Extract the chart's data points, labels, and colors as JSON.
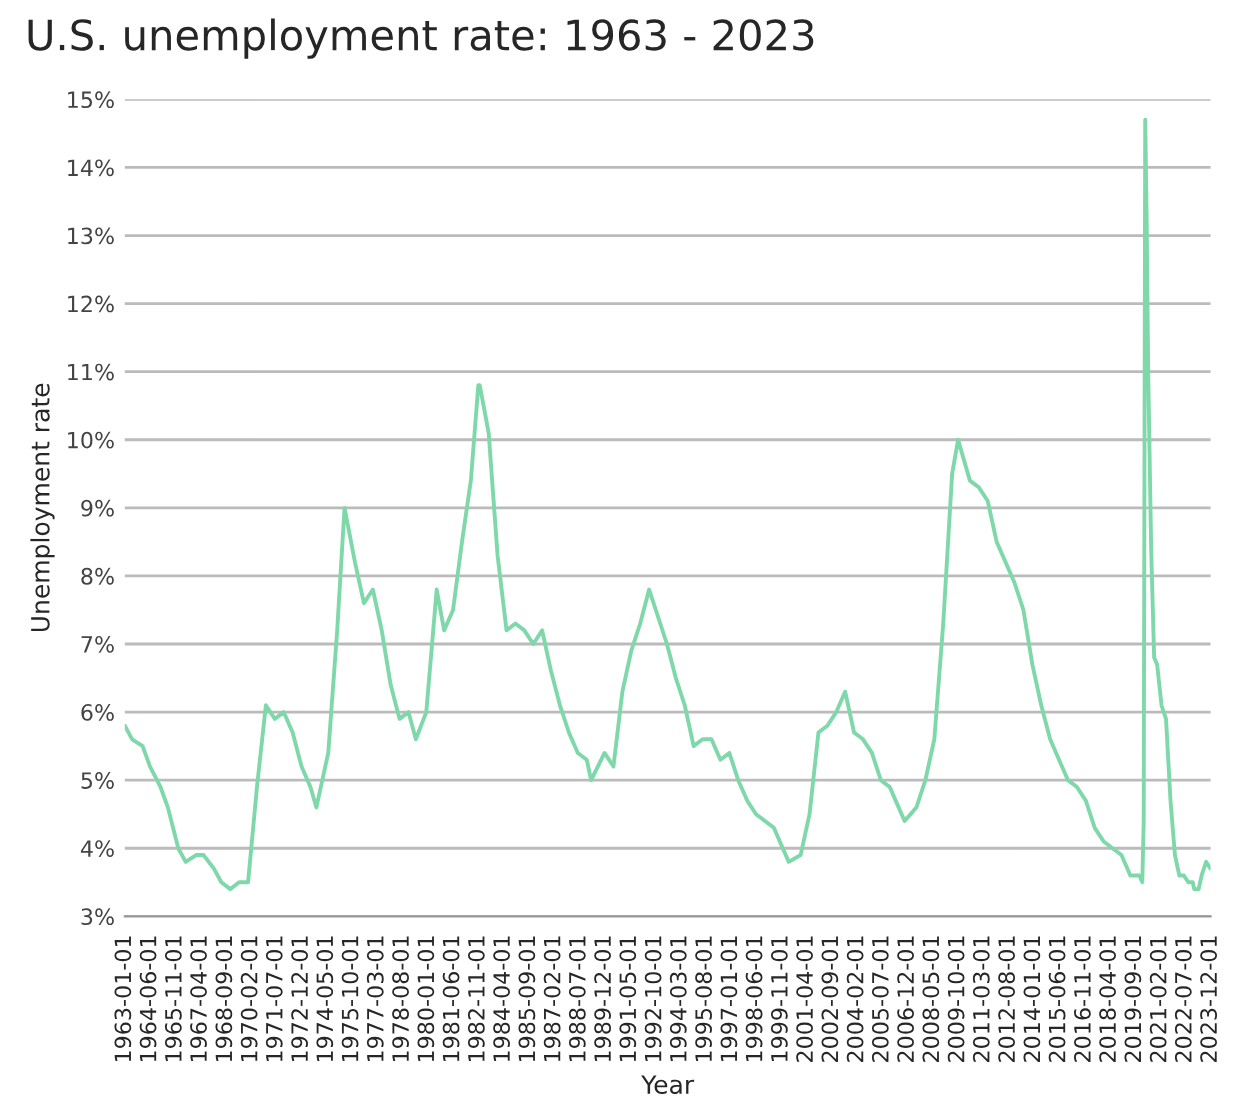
{
  "chart_data": {
    "type": "line",
    "title": "U.S. unemployment rate: 1963 - 2023",
    "xlabel": "Year",
    "ylabel": "Unemployment rate",
    "x": [
      "1963-01",
      "1963-06",
      "1964-01",
      "1964-06",
      "1965-01",
      "1965-06",
      "1966-01",
      "1966-06",
      "1967-01",
      "1967-06",
      "1968-01",
      "1968-06",
      "1968-12",
      "1969-06",
      "1969-12",
      "1970-06",
      "1970-12",
      "1971-06",
      "1971-12",
      "1972-06",
      "1972-12",
      "1973-06",
      "1973-10",
      "1974-06",
      "1974-12",
      "1975-05",
      "1975-12",
      "1976-06",
      "1976-12",
      "1977-06",
      "1977-12",
      "1978-06",
      "1978-12",
      "1979-05",
      "1979-12",
      "1980-07",
      "1980-12",
      "1981-06",
      "1981-12",
      "1982-06",
      "1982-11",
      "1982-12",
      "1983-06",
      "1983-12",
      "1984-06",
      "1984-12",
      "1985-06",
      "1985-12",
      "1986-06",
      "1986-12",
      "1987-06",
      "1987-12",
      "1988-06",
      "1988-12",
      "1989-03",
      "1989-12",
      "1990-06",
      "1990-12",
      "1991-06",
      "1991-12",
      "1992-06",
      "1992-12",
      "1993-06",
      "1993-12",
      "1994-06",
      "1994-12",
      "1995-06",
      "1995-12",
      "1996-06",
      "1996-12",
      "1997-06",
      "1997-12",
      "1998-06",
      "1998-12",
      "1999-06",
      "1999-12",
      "2000-04",
      "2000-12",
      "2001-06",
      "2001-12",
      "2002-06",
      "2002-12",
      "2003-06",
      "2003-12",
      "2004-06",
      "2004-12",
      "2005-06",
      "2005-12",
      "2006-06",
      "2006-10",
      "2007-06",
      "2007-12",
      "2008-06",
      "2008-12",
      "2009-06",
      "2009-10",
      "2010-06",
      "2010-12",
      "2011-06",
      "2011-12",
      "2012-06",
      "2012-12",
      "2013-06",
      "2013-12",
      "2014-06",
      "2014-12",
      "2015-06",
      "2015-12",
      "2016-06",
      "2016-12",
      "2017-06",
      "2017-12",
      "2018-06",
      "2018-12",
      "2019-06",
      "2019-12",
      "2020-02",
      "2020-03",
      "2020-04",
      "2020-05",
      "2020-06",
      "2020-08",
      "2020-10",
      "2020-12",
      "2021-03",
      "2021-06",
      "2021-09",
      "2021-12",
      "2022-03",
      "2022-06",
      "2022-09",
      "2022-12",
      "2023-01",
      "2023-04",
      "2023-06",
      "2023-09",
      "2023-12"
    ],
    "series": [
      {
        "color": "#7fd8aa",
        "values": [
          5.8,
          5.6,
          5.5,
          5.2,
          4.9,
          4.6,
          4.0,
          3.8,
          3.9,
          3.9,
          3.7,
          3.5,
          3.4,
          3.5,
          3.5,
          4.9,
          6.1,
          5.9,
          6.0,
          5.7,
          5.2,
          4.9,
          4.6,
          5.4,
          7.2,
          9.0,
          8.2,
          7.6,
          7.8,
          7.2,
          6.4,
          5.9,
          6.0,
          5.6,
          6.0,
          7.8,
          7.2,
          7.5,
          8.5,
          9.4,
          10.8,
          10.8,
          10.1,
          8.3,
          7.2,
          7.3,
          7.2,
          7.0,
          7.2,
          6.6,
          6.1,
          5.7,
          5.4,
          5.3,
          5.0,
          5.4,
          5.2,
          6.3,
          6.9,
          7.3,
          7.8,
          7.4,
          7.0,
          6.5,
          6.1,
          5.5,
          5.6,
          5.6,
          5.3,
          5.4,
          5.0,
          4.7,
          4.5,
          4.4,
          4.3,
          4.0,
          3.8,
          3.9,
          4.5,
          5.7,
          5.8,
          6.0,
          6.3,
          5.7,
          5.6,
          5.4,
          5.0,
          4.9,
          4.6,
          4.4,
          4.6,
          5.0,
          5.6,
          7.3,
          9.5,
          10.0,
          9.4,
          9.3,
          9.1,
          8.5,
          8.2,
          7.9,
          7.5,
          6.7,
          6.1,
          5.6,
          5.3,
          5.0,
          4.9,
          4.7,
          4.3,
          4.1,
          4.0,
          3.9,
          3.6,
          3.6,
          3.5,
          4.4,
          14.7,
          13.2,
          11.0,
          8.4,
          6.8,
          6.7,
          6.1,
          5.9,
          4.7,
          3.9,
          3.6,
          3.6,
          3.5,
          3.5,
          3.4,
          3.4,
          3.6,
          3.8,
          3.7
        ]
      }
    ],
    "xlim": [
      "1963-01",
      "2023-12"
    ],
    "xticks": [
      {
        "value": "1963-01",
        "label": "1963-01-01"
      },
      {
        "value": "1964-06",
        "label": "1964-06-01"
      },
      {
        "value": "1965-11",
        "label": "1965-11-01"
      },
      {
        "value": "1967-04",
        "label": "1967-04-01"
      },
      {
        "value": "1968-09",
        "label": "1968-09-01"
      },
      {
        "value": "1970-02",
        "label": "1970-02-01"
      },
      {
        "value": "1971-07",
        "label": "1971-07-01"
      },
      {
        "value": "1972-12",
        "label": "1972-12-01"
      },
      {
        "value": "1974-05",
        "label": "1974-05-01"
      },
      {
        "value": "1975-10",
        "label": "1975-10-01"
      },
      {
        "value": "1977-03",
        "label": "1977-03-01"
      },
      {
        "value": "1978-08",
        "label": "1978-08-01"
      },
      {
        "value": "1980-01",
        "label": "1980-01-01"
      },
      {
        "value": "1981-06",
        "label": "1981-06-01"
      },
      {
        "value": "1982-11",
        "label": "1982-11-01"
      },
      {
        "value": "1984-04",
        "label": "1984-04-01"
      },
      {
        "value": "1985-09",
        "label": "1985-09-01"
      },
      {
        "value": "1987-02",
        "label": "1987-02-01"
      },
      {
        "value": "1988-07",
        "label": "1988-07-01"
      },
      {
        "value": "1989-12",
        "label": "1989-12-01"
      },
      {
        "value": "1991-05",
        "label": "1991-05-01"
      },
      {
        "value": "1992-10",
        "label": "1992-10-01"
      },
      {
        "value": "1994-03",
        "label": "1994-03-01"
      },
      {
        "value": "1995-08",
        "label": "1995-08-01"
      },
      {
        "value": "1997-01",
        "label": "1997-01-01"
      },
      {
        "value": "1998-06",
        "label": "1998-06-01"
      },
      {
        "value": "1999-11",
        "label": "1999-11-01"
      },
      {
        "value": "2001-04",
        "label": "2001-04-01"
      },
      {
        "value": "2002-09",
        "label": "2002-09-01"
      },
      {
        "value": "2004-02",
        "label": "2004-02-01"
      },
      {
        "value": "2005-07",
        "label": "2005-07-01"
      },
      {
        "value": "2006-12",
        "label": "2006-12-01"
      },
      {
        "value": "2008-05",
        "label": "2008-05-01"
      },
      {
        "value": "2009-10",
        "label": "2009-10-01"
      },
      {
        "value": "2011-03",
        "label": "2011-03-01"
      },
      {
        "value": "2012-08",
        "label": "2012-08-01"
      },
      {
        "value": "2014-01",
        "label": "2014-01-01"
      },
      {
        "value": "2015-06",
        "label": "2015-06-01"
      },
      {
        "value": "2016-11",
        "label": "2016-11-01"
      },
      {
        "value": "2018-04",
        "label": "2018-04-01"
      },
      {
        "value": "2019-09",
        "label": "2019-09-01"
      },
      {
        "value": "2021-02",
        "label": "2021-02-01"
      },
      {
        "value": "2022-07",
        "label": "2022-07-01"
      },
      {
        "value": "2023-12",
        "label": "2023-12-01"
      }
    ],
    "ylim": [
      3,
      15
    ],
    "yticks": [
      {
        "value": 3,
        "label": "3%"
      },
      {
        "value": 4,
        "label": "4%"
      },
      {
        "value": 5,
        "label": "5%"
      },
      {
        "value": 6,
        "label": "6%"
      },
      {
        "value": 7,
        "label": "7%"
      },
      {
        "value": 8,
        "label": "8%"
      },
      {
        "value": 9,
        "label": "9%"
      },
      {
        "value": 10,
        "label": "10%"
      },
      {
        "value": 11,
        "label": "11%"
      },
      {
        "value": 12,
        "label": "12%"
      },
      {
        "value": 13,
        "label": "13%"
      },
      {
        "value": 14,
        "label": "14%"
      },
      {
        "value": 15,
        "label": "15%"
      }
    ],
    "grid": "y",
    "marker": "none",
    "line_style": "solid"
  }
}
